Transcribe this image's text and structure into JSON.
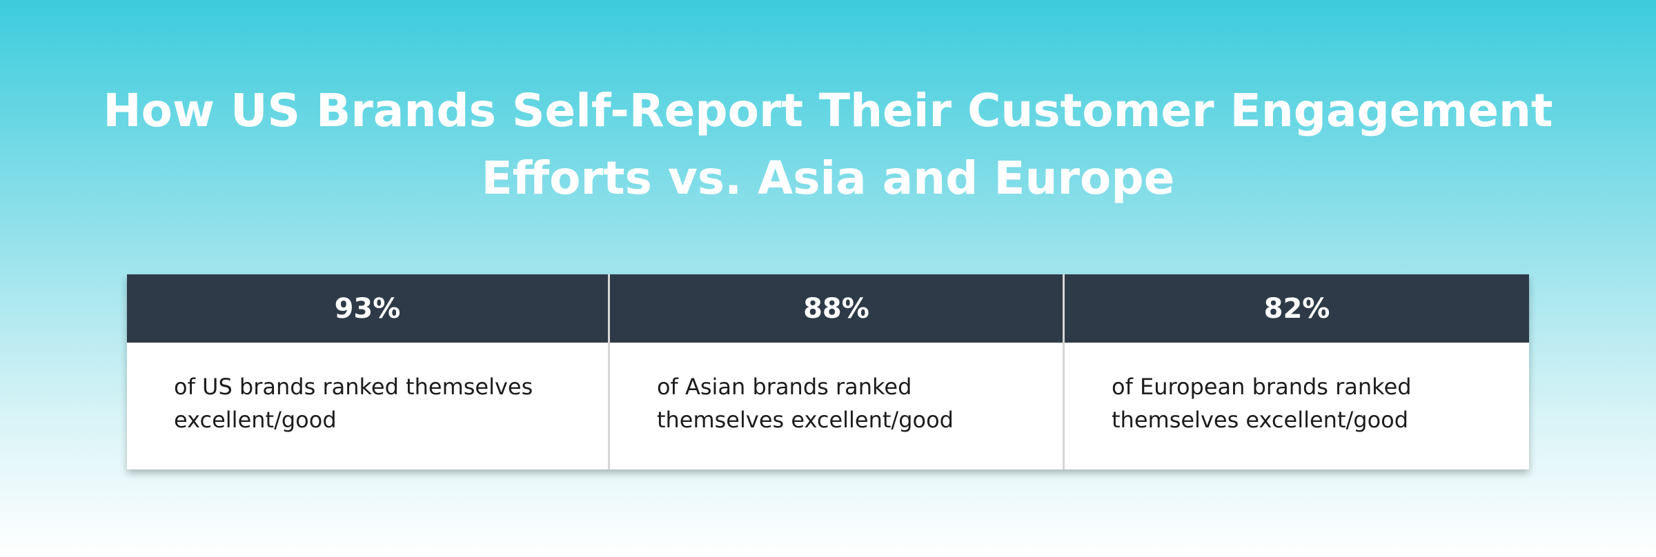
{
  "header": {
    "title_lines": [
      "How US Brands Self-Report Their Customer Engagement",
      "Efforts vs. Asia and Europe"
    ]
  },
  "table": {
    "columns": [
      {
        "heading": "93%",
        "description_lines": [
          "of US brands ranked themselves",
          "excellent/good"
        ]
      },
      {
        "heading": "88%",
        "description_lines": [
          "of Asian brands ranked",
          "themselves excellent/good"
        ]
      },
      {
        "heading": "82%",
        "description_lines": [
          "of European brands ranked",
          "themselves excellent/good"
        ]
      }
    ]
  }
}
